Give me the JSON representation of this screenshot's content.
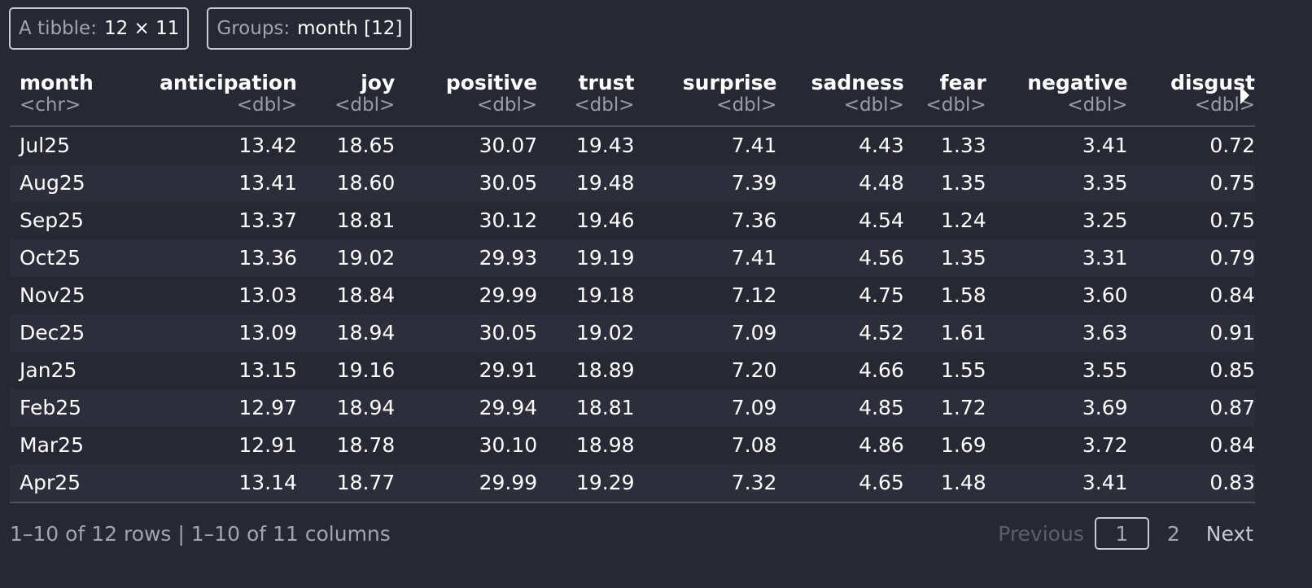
{
  "badges": {
    "tibble_label": "A tibble:",
    "tibble_value": "12 × 11",
    "groups_label": "Groups:",
    "groups_value": "month [12]"
  },
  "table": {
    "columns": [
      {
        "name": "month",
        "type": "<chr>"
      },
      {
        "name": "anticipation",
        "type": "<dbl>"
      },
      {
        "name": "joy",
        "type": "<dbl>"
      },
      {
        "name": "positive",
        "type": "<dbl>"
      },
      {
        "name": "trust",
        "type": "<dbl>"
      },
      {
        "name": "surprise",
        "type": "<dbl>"
      },
      {
        "name": "sadness",
        "type": "<dbl>"
      },
      {
        "name": "fear",
        "type": "<dbl>"
      },
      {
        "name": "negative",
        "type": "<dbl>"
      },
      {
        "name": "disgust",
        "type": "<dbl>"
      }
    ],
    "rows": [
      [
        "Jul25",
        "13.42",
        "18.65",
        "30.07",
        "19.43",
        "7.41",
        "4.43",
        "1.33",
        "3.41",
        "0.72"
      ],
      [
        "Aug25",
        "13.41",
        "18.60",
        "30.05",
        "19.48",
        "7.39",
        "4.48",
        "1.35",
        "3.35",
        "0.75"
      ],
      [
        "Sep25",
        "13.37",
        "18.81",
        "30.12",
        "19.46",
        "7.36",
        "4.54",
        "1.24",
        "3.25",
        "0.75"
      ],
      [
        "Oct25",
        "13.36",
        "19.02",
        "29.93",
        "19.19",
        "7.41",
        "4.56",
        "1.35",
        "3.31",
        "0.79"
      ],
      [
        "Nov25",
        "13.03",
        "18.84",
        "29.99",
        "19.18",
        "7.12",
        "4.75",
        "1.58",
        "3.60",
        "0.84"
      ],
      [
        "Dec25",
        "13.09",
        "18.94",
        "30.05",
        "19.02",
        "7.09",
        "4.52",
        "1.61",
        "3.63",
        "0.91"
      ],
      [
        "Jan25",
        "13.15",
        "19.16",
        "29.91",
        "18.89",
        "7.20",
        "4.66",
        "1.55",
        "3.55",
        "0.85"
      ],
      [
        "Feb25",
        "12.97",
        "18.94",
        "29.94",
        "18.81",
        "7.09",
        "4.85",
        "1.72",
        "3.69",
        "0.87"
      ],
      [
        "Mar25",
        "12.91",
        "18.78",
        "30.10",
        "18.98",
        "7.08",
        "4.86",
        "1.69",
        "3.72",
        "0.84"
      ],
      [
        "Apr25",
        "13.14",
        "18.77",
        "29.99",
        "19.29",
        "7.32",
        "4.65",
        "1.48",
        "3.41",
        "0.83"
      ]
    ]
  },
  "footer": {
    "info": "1–10 of 12 rows | 1–10 of 11 columns",
    "previous": "Previous",
    "current_page": "1",
    "page_2": "2",
    "next": "Next"
  },
  "icons": {
    "more_columns": "triangle-right-icon"
  },
  "colors": {
    "background": "#262833",
    "stripe": "#2c2f3b",
    "muted_text": "#a3a5ad"
  }
}
